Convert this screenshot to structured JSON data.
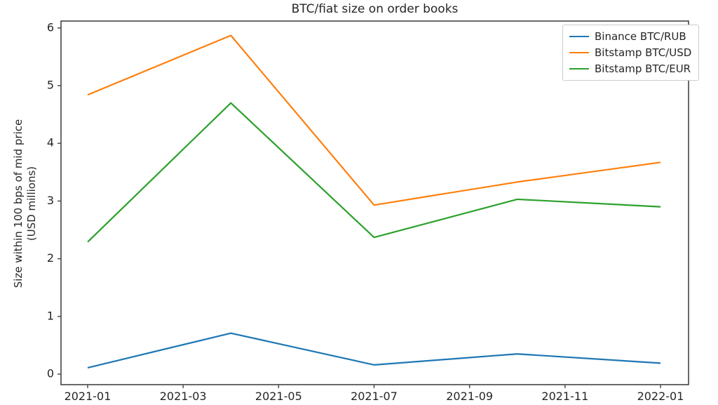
{
  "chart_data": {
    "type": "line",
    "title": "BTC/fiat size on order books",
    "ylabel_line1": "Size within 100 bps of mid price",
    "ylabel_line2": "(USD millions)",
    "xlabel": "",
    "x": [
      "2021-01",
      "2021-04",
      "2021-07",
      "2021-10",
      "2022-01"
    ],
    "x_months": [
      0,
      3,
      6,
      9,
      12
    ],
    "series": [
      {
        "name": "Binance BTC/RUB",
        "color": "#1f77b4",
        "values": [
          0.11,
          0.71,
          0.16,
          0.35,
          0.19
        ]
      },
      {
        "name": "Bitstamp BTC/USD",
        "color": "#ff7f0e",
        "values": [
          4.84,
          5.87,
          2.93,
          3.33,
          3.67
        ]
      },
      {
        "name": "Bitstamp BTC/EUR",
        "color": "#2ca02c",
        "values": [
          2.29,
          4.7,
          2.37,
          3.03,
          2.9
        ]
      }
    ],
    "x_ticks": {
      "months": [
        0,
        2,
        4,
        6,
        8,
        10,
        12
      ],
      "labels": [
        "2021-01",
        "2021-03",
        "2021-05",
        "2021-07",
        "2021-09",
        "2021-11",
        "2022-01"
      ]
    },
    "y_ticks": [
      "0",
      "1",
      "2",
      "3",
      "4",
      "5",
      "6"
    ],
    "ylim": [
      0,
      6
    ],
    "grid": false,
    "legend_position": "upper right",
    "axis_color": "#444444",
    "text_color": "#262626"
  }
}
